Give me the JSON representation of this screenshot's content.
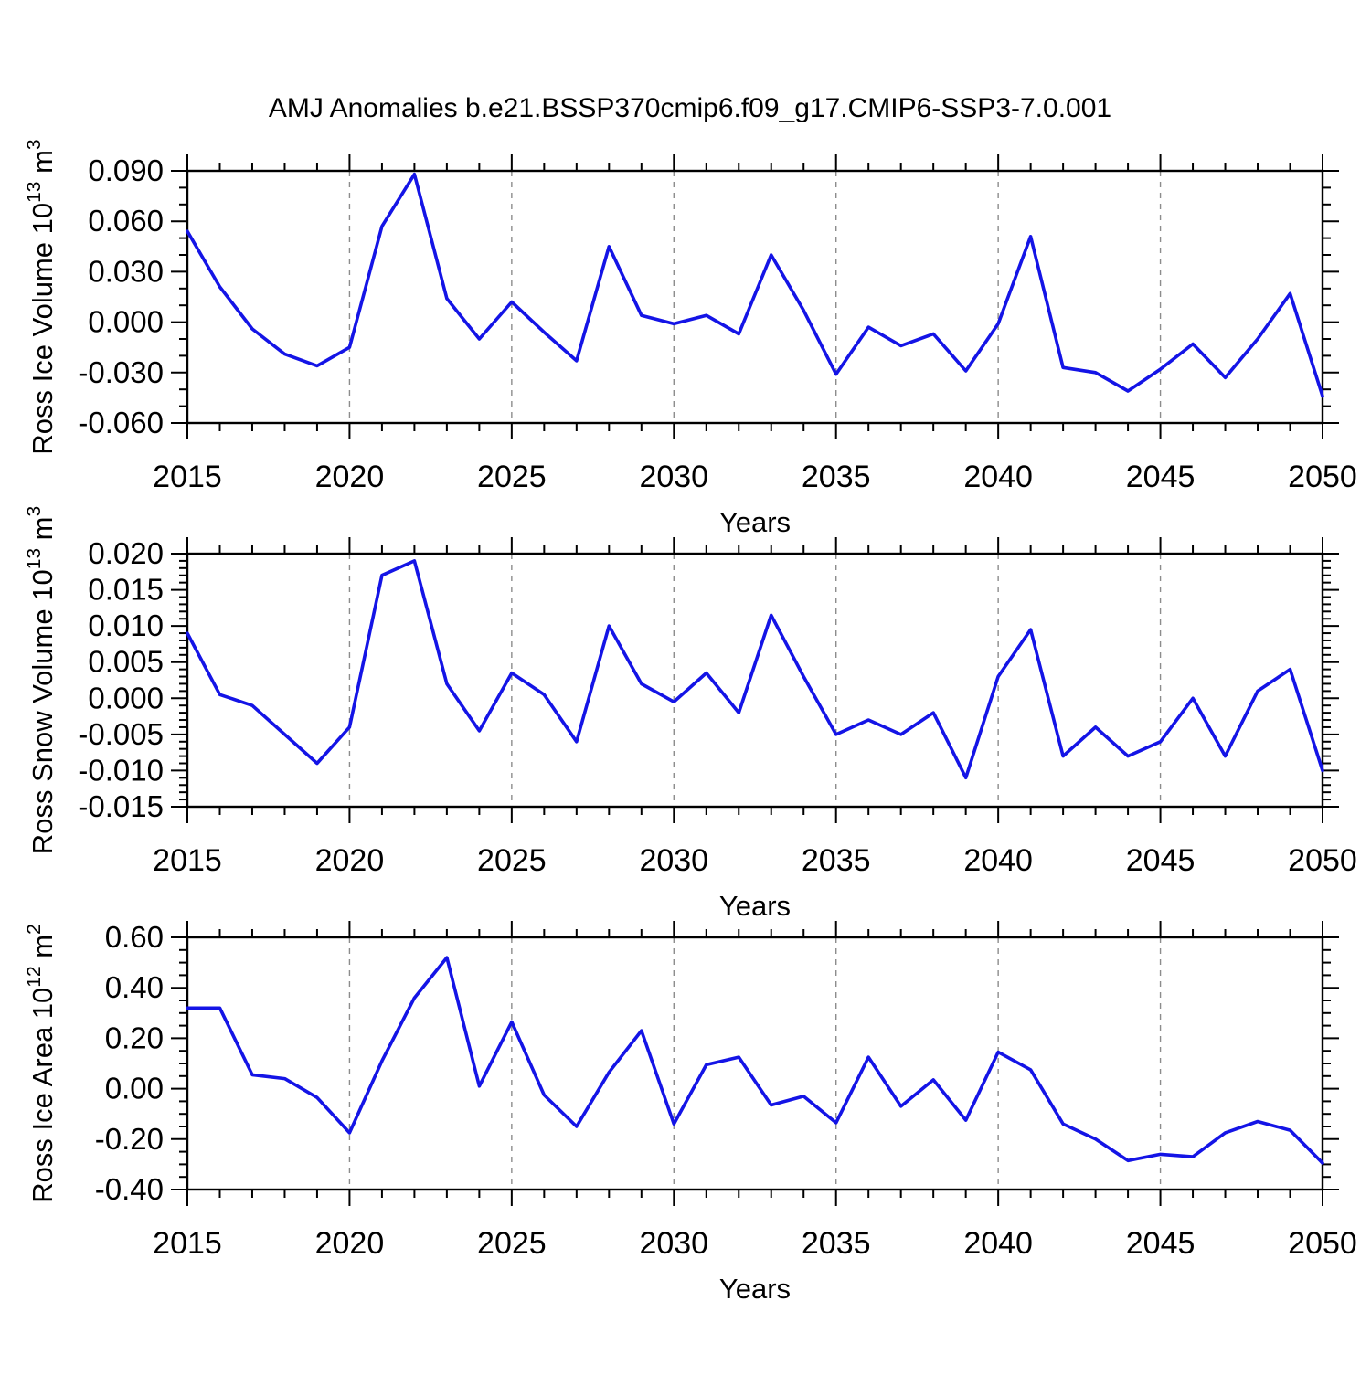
{
  "title": "AMJ Anomalies b.e21.BSSP370cmip6.f09_g17.CMIP6-SSP3-7.0.001",
  "line_color": "#1414e6",
  "axis_color": "#000000",
  "gridline_color": "#8c8c8c",
  "chart_data": [
    {
      "type": "line",
      "ylabel": {
        "prefix": "Ross Ice Volume 10",
        "exp": "13",
        "unit": " m",
        "unit_exp": "3"
      },
      "xlabel": "Years",
      "x": [
        2015,
        2016,
        2017,
        2018,
        2019,
        2020,
        2021,
        2022,
        2023,
        2024,
        2025,
        2026,
        2027,
        2028,
        2029,
        2030,
        2031,
        2032,
        2033,
        2034,
        2035,
        2036,
        2037,
        2038,
        2039,
        2040,
        2041,
        2042,
        2043,
        2044,
        2045,
        2046,
        2047,
        2048,
        2049,
        2050
      ],
      "values": [
        0.054,
        0.021,
        -0.004,
        -0.019,
        -0.026,
        -0.015,
        0.057,
        0.088,
        0.014,
        -0.01,
        0.012,
        -0.006,
        -0.023,
        0.045,
        0.004,
        -0.001,
        0.004,
        -0.007,
        0.04,
        0.007,
        -0.031,
        -0.003,
        -0.014,
        -0.007,
        -0.029,
        -0.001,
        0.051,
        -0.027,
        -0.03,
        -0.041,
        -0.028,
        -0.013,
        -0.033,
        -0.01,
        0.017,
        -0.044
      ],
      "xlim": [
        2015,
        2050
      ],
      "ylim": [
        -0.06,
        0.09
      ],
      "y_major_ticks": [
        0.09,
        0.06,
        0.03,
        0.0,
        -0.03,
        -0.06
      ],
      "y_tick_labels": [
        "0.090",
        "0.060",
        "0.030",
        "0.000",
        "-0.030",
        "-0.060"
      ],
      "y_minor_step": 0.01,
      "x_major_ticks": [
        2015,
        2020,
        2025,
        2030,
        2035,
        2040,
        2045,
        2050
      ],
      "x_tick_labels": [
        "2015",
        "2020",
        "2025",
        "2030",
        "2035",
        "2040",
        "2045",
        "2050"
      ],
      "x_minor_step": 1,
      "gridlines_x": [
        2020,
        2025,
        2030,
        2035,
        2040,
        2045
      ],
      "grid": "vertical-dashed",
      "legend": "none"
    },
    {
      "type": "line",
      "ylabel": {
        "prefix": "Ross Snow Volume 10",
        "exp": "13",
        "unit": " m",
        "unit_exp": "3"
      },
      "xlabel": "Years",
      "x": [
        2015,
        2016,
        2017,
        2018,
        2019,
        2020,
        2021,
        2022,
        2023,
        2024,
        2025,
        2026,
        2027,
        2028,
        2029,
        2030,
        2031,
        2032,
        2033,
        2034,
        2035,
        2036,
        2037,
        2038,
        2039,
        2040,
        2041,
        2042,
        2043,
        2044,
        2045,
        2046,
        2047,
        2048,
        2049,
        2050
      ],
      "values": [
        0.009,
        0.0005,
        -0.001,
        -0.005,
        -0.009,
        -0.004,
        0.017,
        0.019,
        0.002,
        -0.0045,
        0.0035,
        0.0005,
        -0.006,
        0.01,
        0.002,
        -0.0005,
        0.0035,
        -0.002,
        0.0115,
        0.003,
        -0.005,
        -0.003,
        -0.005,
        -0.002,
        -0.011,
        0.003,
        0.0095,
        -0.008,
        -0.004,
        -0.008,
        -0.006,
        0.0,
        -0.008,
        0.001,
        0.004,
        -0.01
      ],
      "xlim": [
        2015,
        2050
      ],
      "ylim": [
        -0.015,
        0.02
      ],
      "y_major_ticks": [
        0.02,
        0.015,
        0.01,
        0.005,
        0.0,
        -0.005,
        -0.01,
        -0.015
      ],
      "y_tick_labels": [
        "0.020",
        "0.015",
        "0.010",
        "0.005",
        "0.000",
        "-0.005",
        "-0.010",
        "-0.015"
      ],
      "y_minor_step": 0.001,
      "x_major_ticks": [
        2015,
        2020,
        2025,
        2030,
        2035,
        2040,
        2045,
        2050
      ],
      "x_tick_labels": [
        "2015",
        "2020",
        "2025",
        "2030",
        "2035",
        "2040",
        "2045",
        "2050"
      ],
      "x_minor_step": 1,
      "gridlines_x": [
        2020,
        2025,
        2030,
        2035,
        2040,
        2045
      ],
      "grid": "vertical-dashed",
      "legend": "none"
    },
    {
      "type": "line",
      "ylabel": {
        "prefix": "Ross Ice Area 10",
        "exp": "12",
        "unit": " m",
        "unit_exp": "2"
      },
      "xlabel": "Years",
      "x": [
        2015,
        2016,
        2017,
        2018,
        2019,
        2020,
        2021,
        2022,
        2023,
        2024,
        2025,
        2026,
        2027,
        2028,
        2029,
        2030,
        2031,
        2032,
        2033,
        2034,
        2035,
        2036,
        2037,
        2038,
        2039,
        2040,
        2041,
        2042,
        2043,
        2044,
        2045,
        2046,
        2047,
        2048,
        2049,
        2050
      ],
      "values": [
        0.32,
        0.32,
        0.055,
        0.04,
        -0.035,
        -0.175,
        0.11,
        0.36,
        0.52,
        0.01,
        0.265,
        -0.025,
        -0.15,
        0.065,
        0.23,
        -0.14,
        0.095,
        0.125,
        -0.065,
        -0.03,
        -0.135,
        0.125,
        -0.07,
        0.035,
        -0.125,
        0.145,
        0.075,
        -0.14,
        -0.2,
        -0.285,
        -0.26,
        -0.27,
        -0.175,
        -0.13,
        -0.165,
        -0.295
      ],
      "xlim": [
        2015,
        2050
      ],
      "ylim": [
        -0.4,
        0.6
      ],
      "y_major_ticks": [
        0.6,
        0.4,
        0.2,
        0.0,
        -0.2,
        -0.4
      ],
      "y_tick_labels": [
        "0.60",
        "0.40",
        "0.20",
        "0.00",
        "-0.20",
        "-0.40"
      ],
      "y_minor_step": 0.05,
      "x_major_ticks": [
        2015,
        2020,
        2025,
        2030,
        2035,
        2040,
        2045,
        2050
      ],
      "x_tick_labels": [
        "2015",
        "2020",
        "2025",
        "2030",
        "2035",
        "2040",
        "2045",
        "2050"
      ],
      "x_minor_step": 1,
      "gridlines_x": [
        2020,
        2025,
        2030,
        2035,
        2040,
        2045
      ],
      "grid": "vertical-dashed",
      "legend": "none"
    }
  ]
}
